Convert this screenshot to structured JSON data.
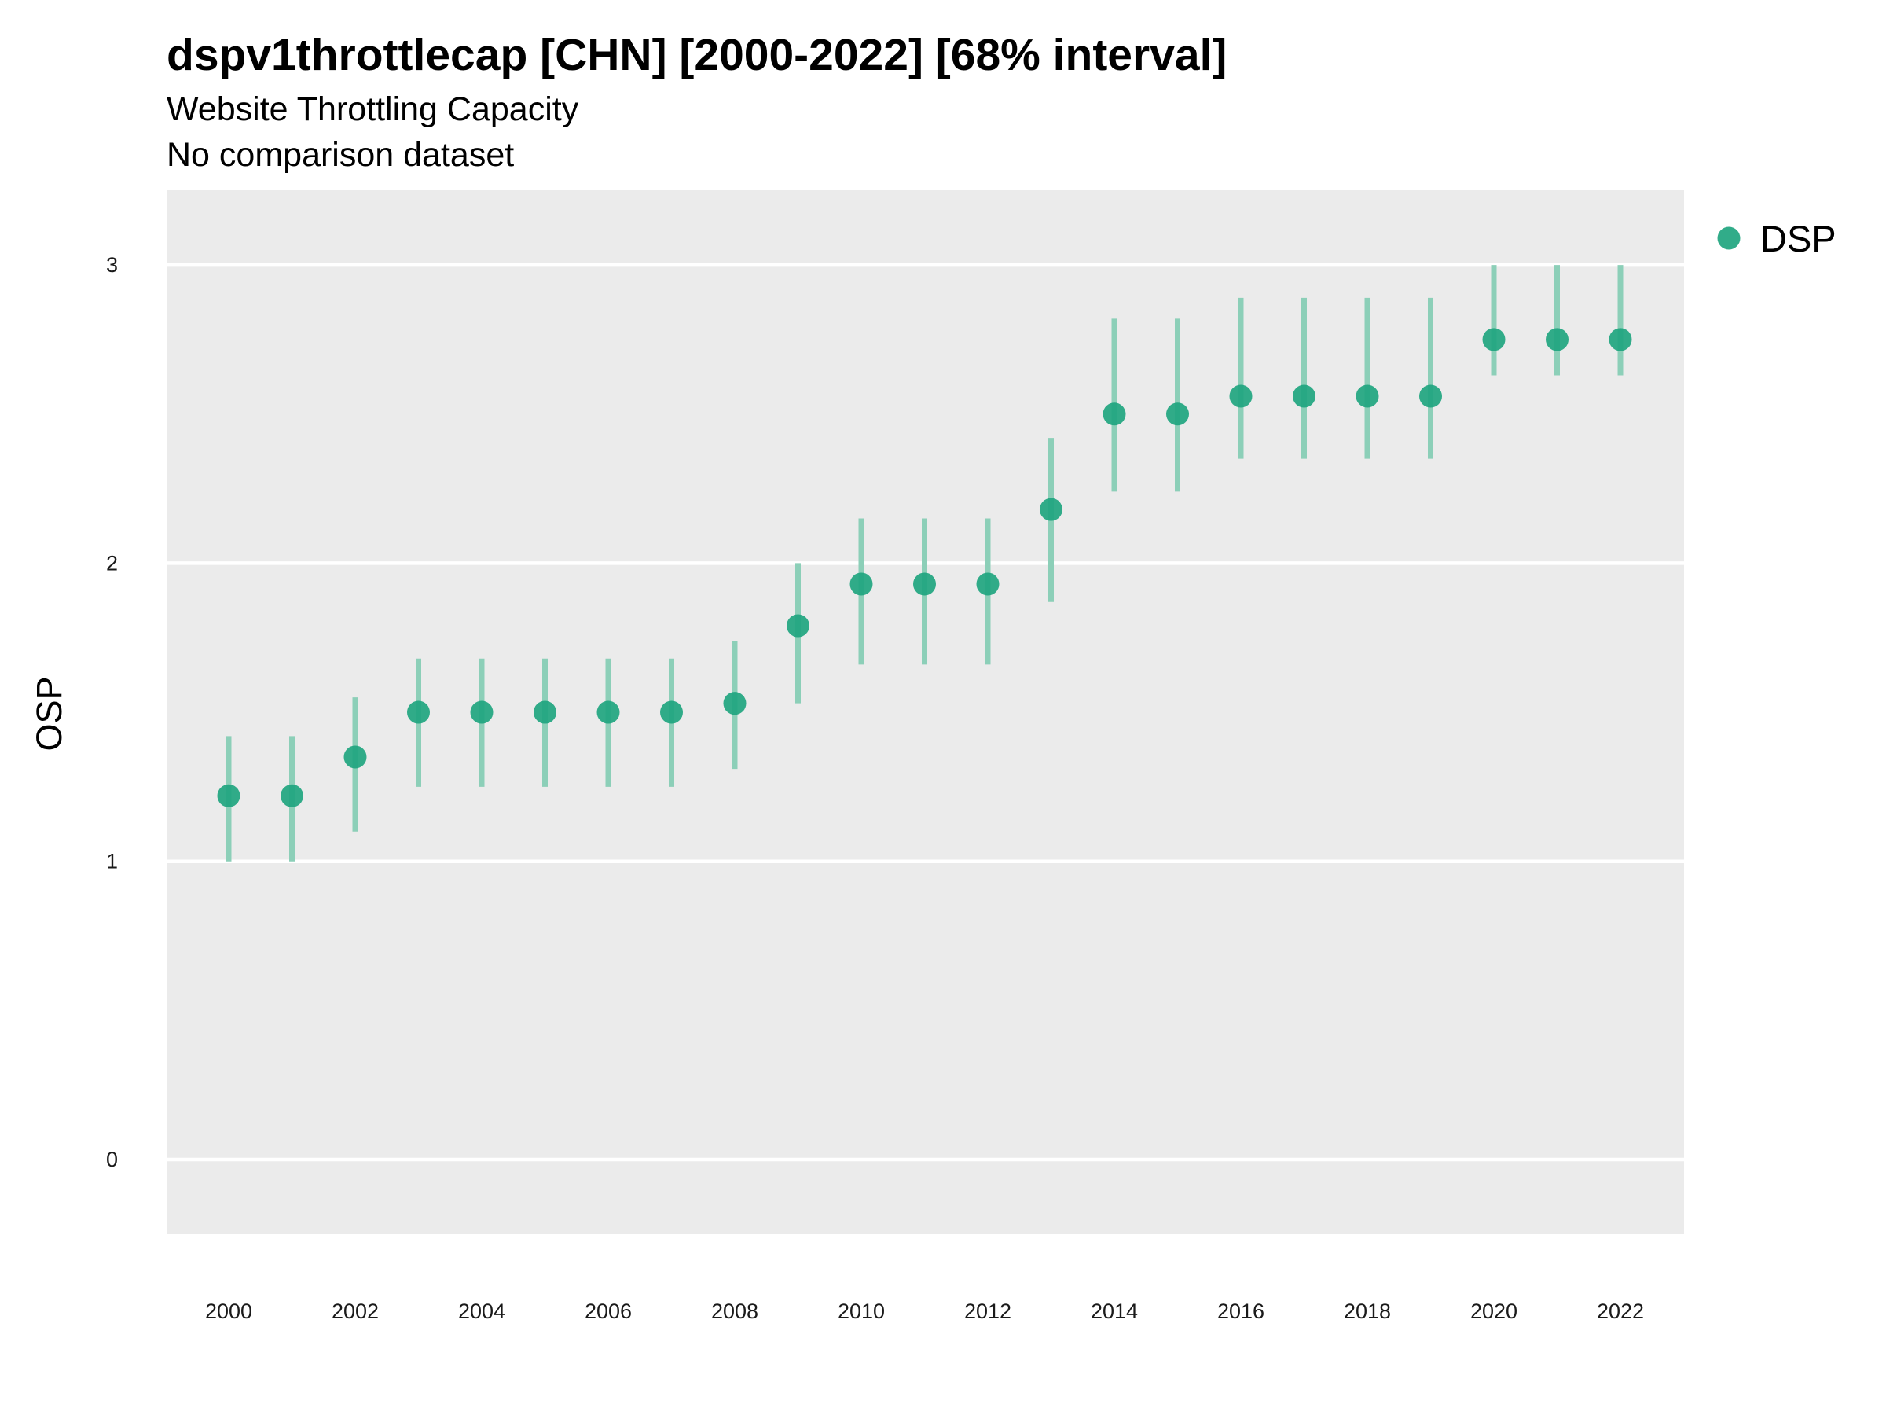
{
  "chart_data": {
    "type": "scatter",
    "title": "dspv1throttlecap [CHN] [2000-2022] [68% interval]",
    "subtitles": [
      "Website Throttling Capacity",
      "No comparison dataset"
    ],
    "xlabel": "",
    "ylabel": "OSP",
    "xlim": [
      1999,
      2023.1
    ],
    "ylim": [
      -0.25,
      3.25
    ],
    "x_ticks": [
      2000,
      2002,
      2004,
      2006,
      2008,
      2010,
      2012,
      2014,
      2016,
      2018,
      2020,
      2022
    ],
    "y_ticks": [
      0,
      1,
      2,
      3
    ],
    "grid": true,
    "legend_position": "top-right",
    "series": [
      {
        "name": "DSP",
        "color": "#1fa57f",
        "points": [
          {
            "x": 2000,
            "y": 1.22,
            "low": 1.0,
            "high": 1.42
          },
          {
            "x": 2001,
            "y": 1.22,
            "low": 1.0,
            "high": 1.42
          },
          {
            "x": 2002,
            "y": 1.35,
            "low": 1.1,
            "high": 1.55
          },
          {
            "x": 2003,
            "y": 1.5,
            "low": 1.25,
            "high": 1.68
          },
          {
            "x": 2004,
            "y": 1.5,
            "low": 1.25,
            "high": 1.68
          },
          {
            "x": 2005,
            "y": 1.5,
            "low": 1.25,
            "high": 1.68
          },
          {
            "x": 2006,
            "y": 1.5,
            "low": 1.25,
            "high": 1.68
          },
          {
            "x": 2007,
            "y": 1.5,
            "low": 1.25,
            "high": 1.68
          },
          {
            "x": 2008,
            "y": 1.53,
            "low": 1.31,
            "high": 1.74
          },
          {
            "x": 2009,
            "y": 1.79,
            "low": 1.53,
            "high": 2.0
          },
          {
            "x": 2010,
            "y": 1.93,
            "low": 1.66,
            "high": 2.15
          },
          {
            "x": 2011,
            "y": 1.93,
            "low": 1.66,
            "high": 2.15
          },
          {
            "x": 2012,
            "y": 1.93,
            "low": 1.66,
            "high": 2.15
          },
          {
            "x": 2013,
            "y": 2.18,
            "low": 1.87,
            "high": 2.42
          },
          {
            "x": 2014,
            "y": 2.5,
            "low": 2.24,
            "high": 2.82
          },
          {
            "x": 2015,
            "y": 2.5,
            "low": 2.24,
            "high": 2.82
          },
          {
            "x": 2016,
            "y": 2.56,
            "low": 2.35,
            "high": 2.89
          },
          {
            "x": 2017,
            "y": 2.56,
            "low": 2.35,
            "high": 2.89
          },
          {
            "x": 2018,
            "y": 2.56,
            "low": 2.35,
            "high": 2.89
          },
          {
            "x": 2019,
            "y": 2.56,
            "low": 2.35,
            "high": 2.89
          },
          {
            "x": 2020,
            "y": 2.75,
            "low": 2.63,
            "high": 3.0
          },
          {
            "x": 2021,
            "y": 2.75,
            "low": 2.63,
            "high": 3.0
          },
          {
            "x": 2022,
            "y": 2.75,
            "low": 2.63,
            "high": 3.0
          }
        ]
      }
    ]
  },
  "colors": {
    "panel_background": "#ebebeb",
    "grid_line": "#ffffff",
    "point": "#1fa57f",
    "interval": "#8ccfb8"
  }
}
